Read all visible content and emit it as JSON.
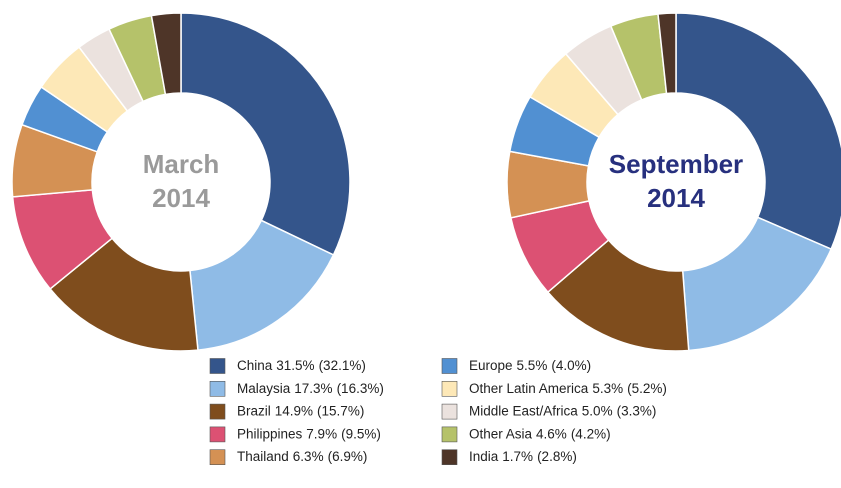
{
  "chart_data": [
    {
      "type": "pie",
      "title_lines": [
        "March",
        "2014"
      ],
      "title_color": "#9a9a9a",
      "categories": [
        "China",
        "Malaysia",
        "Brazil",
        "Philippines",
        "Thailand",
        "Europe",
        "Other Latin America",
        "Middle East/Africa",
        "Other Asia",
        "India"
      ],
      "values": [
        32.1,
        16.3,
        15.7,
        9.5,
        6.9,
        4.0,
        5.2,
        3.3,
        4.2,
        2.8
      ],
      "value_labels": [
        "(32.1%)",
        "(16.3%)",
        "(15.7%)",
        "(9.5%)",
        "(6.9%)",
        "(4.0%)",
        "(5.2%)",
        "(3.3%)",
        "(4.2%)",
        "(2.8%)"
      ],
      "colors": [
        "#34558b",
        "#8fbbe6",
        "#7f4d1d",
        "#dc5173",
        "#d49154",
        "#5190d2",
        "#fde8b7",
        "#ebe2de",
        "#b5c26a",
        "#4e3528"
      ]
    },
    {
      "type": "pie",
      "title_lines": [
        "September",
        "2014"
      ],
      "title_color": "#27307e",
      "categories": [
        "China",
        "Malaysia",
        "Brazil",
        "Philippines",
        "Thailand",
        "Europe",
        "Other Latin America",
        "Middle East/Africa",
        "Other Asia",
        "India"
      ],
      "values": [
        31.5,
        17.3,
        14.9,
        7.9,
        6.3,
        5.5,
        5.3,
        5.0,
        4.6,
        1.7
      ],
      "value_labels": [
        "31.5%",
        "17.3%",
        "14.9%",
        "7.9%",
        "6.3%",
        "5.5%",
        "5.3%",
        "5.0%",
        "4.6%",
        "1.7%"
      ],
      "colors": [
        "#34558b",
        "#8fbbe6",
        "#7f4d1d",
        "#dc5173",
        "#d49154",
        "#5190d2",
        "#fde8b7",
        "#ebe2de",
        "#b5c26a",
        "#4e3528"
      ]
    }
  ]
}
